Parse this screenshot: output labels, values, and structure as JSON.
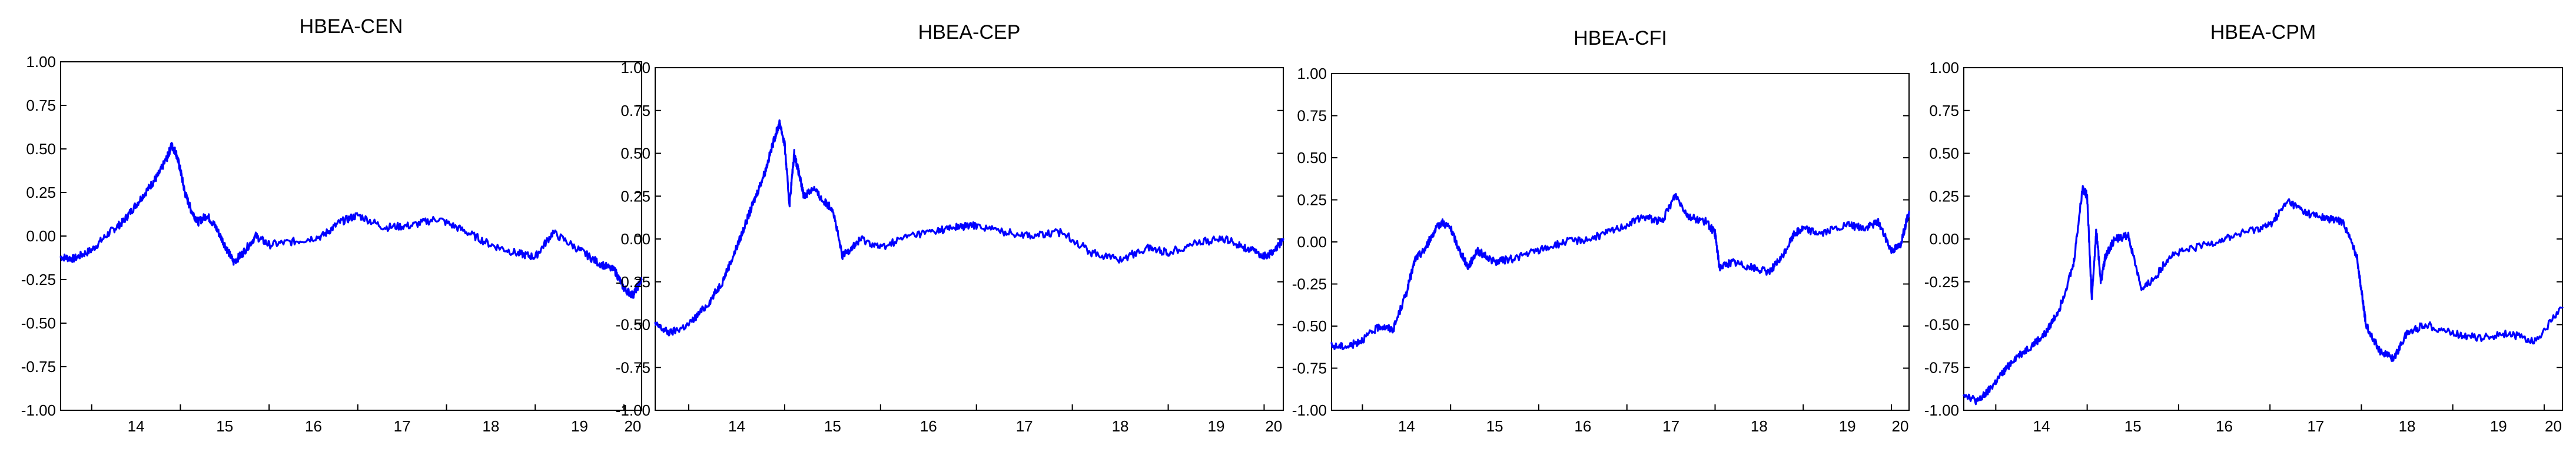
{
  "chart_data": [
    {
      "type": "line",
      "title": "HBEA-CEN",
      "color": "#0000ff",
      "ylim": [
        -1.0,
        1.0
      ],
      "xlim": [
        2013.65,
        2020.2
      ],
      "yticks": [
        "1.00",
        "0.75",
        "0.50",
        "0.25",
        "0.00",
        "-0.25",
        "-0.50",
        "-0.75",
        "-1.00"
      ],
      "xticks": [
        "14",
        "15",
        "16",
        "17",
        "18",
        "19",
        "20"
      ],
      "grid": false,
      "legend": "none",
      "series": [
        {
          "x": [
            2013.65,
            2013.8,
            2014.0,
            2014.2,
            2014.35,
            2014.5,
            2014.65,
            2014.75,
            2014.85,
            2014.9,
            2014.95,
            2015.0,
            2015.05,
            2015.12,
            2015.2,
            2015.3,
            2015.4,
            2015.5,
            2015.6,
            2015.7,
            2015.85,
            2016.0,
            2016.3,
            2016.6,
            2016.8,
            2017.0,
            2017.3,
            2017.6,
            2017.9,
            2018.2,
            2018.5,
            2018.8,
            2019.0,
            2019.2,
            2019.5,
            2019.7,
            2019.9,
            2020.0,
            2020.1,
            2020.2
          ],
          "y": [
            -0.12,
            -0.13,
            -0.08,
            0.02,
            0.08,
            0.18,
            0.28,
            0.35,
            0.45,
            0.52,
            0.48,
            0.38,
            0.25,
            0.15,
            0.08,
            0.12,
            0.05,
            -0.05,
            -0.15,
            -0.1,
            0.0,
            -0.05,
            -0.03,
            0.0,
            0.08,
            0.12,
            0.05,
            0.06,
            0.1,
            0.03,
            -0.05,
            -0.1,
            -0.12,
            0.02,
            -0.08,
            -0.15,
            -0.2,
            -0.3,
            -0.34,
            -0.25
          ]
        }
      ]
    },
    {
      "type": "line",
      "title": "HBEA-CEP",
      "color": "#0000ff",
      "ylim": [
        -1.0,
        1.0
      ],
      "xlim": [
        2013.65,
        2020.2
      ],
      "yticks": [
        "1.00",
        "0.75",
        "0.50",
        "0.25",
        "0.00",
        "-0.25",
        "-0.50",
        "-0.75",
        "-1.00"
      ],
      "xticks": [
        "14",
        "15",
        "16",
        "17",
        "18",
        "19",
        "20"
      ],
      "grid": false,
      "legend": "none",
      "series": [
        {
          "x": [
            2013.65,
            2013.8,
            2014.0,
            2014.2,
            2014.35,
            2014.5,
            2014.6,
            2014.7,
            2014.8,
            2014.9,
            2014.95,
            2015.0,
            2015.05,
            2015.1,
            2015.15,
            2015.2,
            2015.3,
            2015.4,
            2015.5,
            2015.6,
            2015.7,
            2015.8,
            2016.0,
            2016.3,
            2016.6,
            2016.8,
            2017.0,
            2017.3,
            2017.6,
            2017.9,
            2018.2,
            2018.5,
            2018.8,
            2019.0,
            2019.3,
            2019.6,
            2019.8,
            2020.0,
            2020.1,
            2020.2
          ],
          "y": [
            -0.5,
            -0.55,
            -0.5,
            -0.38,
            -0.25,
            -0.05,
            0.1,
            0.25,
            0.4,
            0.6,
            0.68,
            0.55,
            0.2,
            0.5,
            0.38,
            0.25,
            0.3,
            0.22,
            0.18,
            -0.1,
            -0.05,
            0.0,
            -0.05,
            0.02,
            0.05,
            0.07,
            0.08,
            0.04,
            0.02,
            0.04,
            -0.08,
            -0.12,
            -0.05,
            -0.08,
            -0.02,
            0.0,
            -0.05,
            -0.1,
            -0.08,
            0.0
          ]
        }
      ]
    },
    {
      "type": "line",
      "title": "HBEA-CFI",
      "color": "#0000ff",
      "ylim": [
        -1.0,
        1.0
      ],
      "xlim": [
        2013.65,
        2020.2
      ],
      "yticks": [
        "1.00",
        "0.75",
        "0.50",
        "0.25",
        "0.00",
        "-0.25",
        "-0.50",
        "-0.75",
        "-1.00"
      ],
      "xticks": [
        "14",
        "15",
        "16",
        "17",
        "18",
        "19",
        "20"
      ],
      "grid": false,
      "legend": "none",
      "series": [
        {
          "x": [
            2013.65,
            2013.85,
            2014.0,
            2014.2,
            2014.35,
            2014.5,
            2014.6,
            2014.7,
            2014.8,
            2014.9,
            2015.0,
            2015.1,
            2015.2,
            2015.3,
            2015.5,
            2015.7,
            2016.0,
            2016.3,
            2016.6,
            2016.9,
            2017.2,
            2017.4,
            2017.55,
            2017.7,
            2017.9,
            2018.0,
            2018.05,
            2018.2,
            2018.4,
            2018.6,
            2018.75,
            2018.9,
            2019.0,
            2019.2,
            2019.5,
            2019.7,
            2019.85,
            2020.0,
            2020.1,
            2020.2
          ],
          "y": [
            -0.62,
            -0.62,
            -0.58,
            -0.5,
            -0.52,
            -0.3,
            -0.1,
            -0.05,
            0.05,
            0.12,
            0.08,
            -0.05,
            -0.15,
            -0.05,
            -0.12,
            -0.1,
            -0.05,
            0.0,
            0.02,
            0.08,
            0.15,
            0.12,
            0.28,
            0.15,
            0.12,
            0.05,
            -0.15,
            -0.12,
            -0.15,
            -0.18,
            -0.1,
            0.05,
            0.08,
            0.05,
            0.1,
            0.08,
            0.12,
            -0.05,
            -0.02,
            0.18
          ]
        }
      ]
    },
    {
      "type": "line",
      "title": "HBEA-CPM",
      "color": "#0000ff",
      "ylim": [
        -1.0,
        1.0
      ],
      "xlim": [
        2013.65,
        2020.2
      ],
      "yticks": [
        "1.00",
        "0.75",
        "0.50",
        "0.25",
        "0.00",
        "-0.25",
        "-0.50",
        "-0.75",
        "-1.00"
      ],
      "xticks": [
        "14",
        "15",
        "16",
        "17",
        "18",
        "19",
        "20"
      ],
      "grid": false,
      "legend": "none",
      "series": [
        {
          "x": [
            2013.65,
            2013.8,
            2013.9,
            2014.05,
            2014.2,
            2014.4,
            2014.55,
            2014.7,
            2014.85,
            2014.95,
            2015.0,
            2015.05,
            2015.1,
            2015.15,
            2015.2,
            2015.3,
            2015.45,
            2015.6,
            2015.75,
            2015.9,
            2016.2,
            2016.5,
            2016.8,
            2017.0,
            2017.2,
            2017.4,
            2017.6,
            2017.8,
            2017.95,
            2018.0,
            2018.05,
            2018.2,
            2018.35,
            2018.5,
            2018.7,
            2019.0,
            2019.3,
            2019.6,
            2019.9,
            2020.2
          ],
          "y": [
            -0.9,
            -0.95,
            -0.9,
            -0.8,
            -0.7,
            -0.62,
            -0.55,
            -0.4,
            -0.15,
            0.3,
            0.25,
            -0.35,
            0.05,
            -0.25,
            -0.1,
            0.0,
            0.02,
            -0.3,
            -0.22,
            -0.1,
            -0.05,
            0.0,
            0.05,
            0.08,
            0.22,
            0.15,
            0.12,
            0.1,
            -0.1,
            -0.3,
            -0.5,
            -0.65,
            -0.7,
            -0.55,
            -0.5,
            -0.55,
            -0.58,
            -0.55,
            -0.6,
            -0.4
          ]
        }
      ]
    }
  ]
}
